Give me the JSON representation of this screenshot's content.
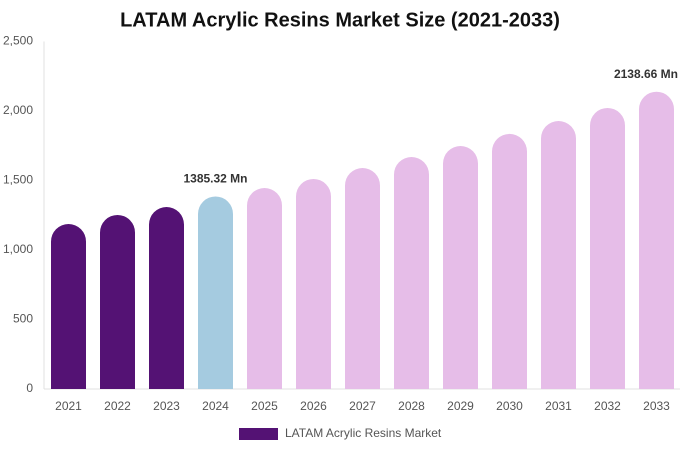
{
  "chart_data": {
    "type": "bar",
    "title": "LATAM Acrylic Resins Market Size (2021-2033)",
    "categories": [
      "2021",
      "2022",
      "2023",
      "2024",
      "2025",
      "2026",
      "2027",
      "2028",
      "2029",
      "2030",
      "2031",
      "2032",
      "2033"
    ],
    "series": [
      {
        "name": "LATAM Acrylic Resins Market",
        "color": "#541274",
        "colors": [
          "#541274",
          "#541274",
          "#541274",
          "#a5cbe0",
          "#e6bde8",
          "#e6bde8",
          "#e6bde8",
          "#e6bde8",
          "#e6bde8",
          "#e6bde8",
          "#e6bde8",
          "#e6bde8",
          "#e6bde8"
        ],
        "values": [
          1187,
          1252,
          1309,
          1385.32,
          1446,
          1511,
          1590,
          1669,
          1748,
          1835,
          1928,
          2022,
          2138.66
        ],
        "value_labels": [
          null,
          null,
          null,
          "1385.32 Mn",
          null,
          null,
          null,
          null,
          null,
          null,
          null,
          null,
          "2138.66 Mn"
        ]
      }
    ],
    "ylim": [
      0,
      2500
    ],
    "yticks": [
      0,
      500,
      {
        "value": 1000,
        "label": "1,000"
      },
      {
        "value": 1500,
        "label": "1,500"
      },
      {
        "value": 2000,
        "label": "2,000"
      },
      {
        "value": 2500,
        "label": "2,500"
      }
    ],
    "grid": false
  }
}
